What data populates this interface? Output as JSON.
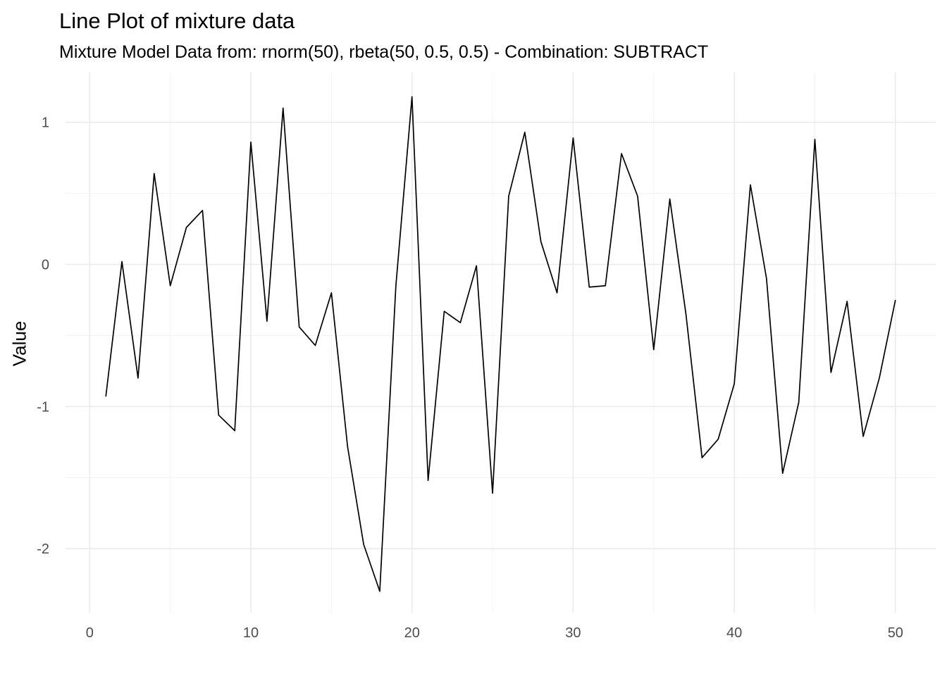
{
  "chart_data": {
    "type": "line",
    "title": "Line Plot of mixture data",
    "subtitle": "Mixture Model Data from: rnorm(50), rbeta(50, 0.5, 0.5) - Combination: SUBTRACT",
    "xlabel": "",
    "ylabel": "Value",
    "xlim": [
      -1.5,
      52.5
    ],
    "ylim": [
      -2.45,
      1.35
    ],
    "x_ticks": [
      0,
      10,
      20,
      30,
      40,
      50
    ],
    "x_tick_labels": [
      "0",
      "10",
      "20",
      "30",
      "40",
      "50"
    ],
    "y_ticks": [
      -2,
      -1,
      0,
      1
    ],
    "y_tick_labels": [
      "-2",
      "-1",
      "0",
      "1"
    ],
    "grid": true,
    "line_color": "#000000",
    "series": [
      {
        "x": [
          1,
          2,
          3,
          4,
          5,
          6,
          7,
          8,
          9,
          10,
          11,
          12,
          13,
          14,
          15,
          16,
          17,
          18,
          19,
          20,
          21,
          22,
          23,
          24,
          25,
          26,
          27,
          28,
          29,
          30,
          31,
          32,
          33,
          34,
          35,
          36,
          37,
          38,
          39,
          40,
          41,
          42,
          43,
          44,
          45,
          46,
          47,
          48,
          49,
          50
        ],
        "values": [
          -0.93,
          0.02,
          -0.8,
          0.64,
          -0.15,
          0.26,
          0.38,
          -1.06,
          -1.17,
          0.86,
          -0.4,
          1.1,
          -0.44,
          -0.57,
          -0.2,
          -1.28,
          -1.97,
          -2.3,
          -0.15,
          1.18,
          -1.52,
          -0.33,
          -0.41,
          -0.01,
          -1.61,
          0.48,
          0.93,
          0.16,
          -0.2,
          0.89,
          -0.16,
          -0.15,
          0.78,
          0.48,
          -0.6,
          0.46,
          -0.35,
          -1.36,
          -1.23,
          -0.84,
          0.56,
          -0.1,
          -1.47,
          -0.97,
          0.88,
          -0.76,
          -0.26,
          -1.21,
          -0.8,
          -0.25
        ]
      }
    ]
  }
}
